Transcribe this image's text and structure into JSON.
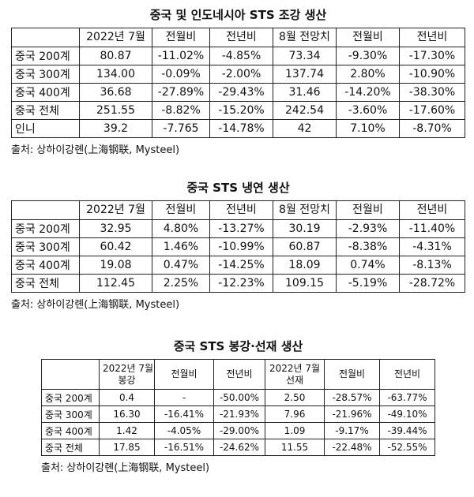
{
  "tables": [
    {
      "title": "중국 및 인도네시아 STS 조강 생산",
      "header": [
        [
          "2022년 7월"
        ],
        [
          "전월비"
        ],
        [
          "전년비"
        ],
        [
          "8월 전망치"
        ],
        [
          "전월비"
        ],
        [
          "전년비"
        ]
      ],
      "rows": [
        [
          "중국 200계",
          "80.87",
          "-11.02%",
          "-4.85%",
          "73.34",
          "-9.30%",
          "-17.30%"
        ],
        [
          "중국 300계",
          "134.00",
          "-0.09%",
          "-2.00%",
          "137.74",
          "2.80%",
          "-10.90%"
        ],
        [
          "중국 400계",
          "36.68",
          "-27.89%",
          "-29.43%",
          "31.46",
          "-14.20%",
          "-38.30%"
        ],
        [
          "중국 전체",
          "251.55",
          "-8.82%",
          "-15.20%",
          "242.54",
          "-3.60%",
          "-17.60%"
        ],
        [
          "인니",
          "39.2",
          "-7.765",
          "-14.78%",
          "42",
          "7.10%",
          "-8.70%"
        ]
      ],
      "source": "출처: 상하이강롄(上海钢联, Mysteel)"
    },
    {
      "title": "중국 STS 냉연 생산",
      "header": [
        [
          "2022년 7월"
        ],
        [
          "전월비"
        ],
        [
          "전년비"
        ],
        [
          "8월 전망치"
        ],
        [
          "전월비"
        ],
        [
          "전년비"
        ]
      ],
      "rows": [
        [
          "중국 200계",
          "32.95",
          "4.80%",
          "-13.27%",
          "30.19",
          "-2.93%",
          "-11.40%"
        ],
        [
          "중국 300계",
          "60.42",
          "1.46%",
          "-10.99%",
          "60.87",
          "-8.38%",
          "-4.31%"
        ],
        [
          "중국 400계",
          "19.08",
          "0.47%",
          "-14.25%",
          "18.09",
          "0.74%",
          "-8.13%"
        ],
        [
          "중국 전체",
          "112.45",
          "2.25%",
          "-12.23%",
          "109.15",
          "-5.19%",
          "-28.72%"
        ]
      ],
      "source": "출처: 상하이강롄(上海钢联, Mysteel)"
    },
    {
      "title": "중국 STS 봉강·선재 생산",
      "header": [
        [
          "2022년 7월",
          "봉강"
        ],
        [
          "전월비"
        ],
        [
          "전년비"
        ],
        [
          "2022년 7월",
          "선재"
        ],
        [
          "전월비"
        ],
        [
          "전년비"
        ]
      ],
      "rows": [
        [
          "중국 200계",
          "0.4",
          "-",
          "-50.00%",
          "2.50",
          "-28.57%",
          "-63.77%"
        ],
        [
          "중국 300계",
          "16.30",
          "-16.41%",
          "-21.93%",
          "7.96",
          "-21.96%",
          "-49.10%"
        ],
        [
          "중국 400계",
          "1.42",
          "-4.05%",
          "-29.00%",
          "1.09",
          "-9.17%",
          "-39.44%"
        ],
        [
          "중국 전체",
          "17.85",
          "-16.51%",
          "-24.62%",
          "11.55",
          "-22.48%",
          "-52.55%"
        ]
      ],
      "source": "출처: 상하이강롄(上海钢联, Mysteel)"
    }
  ]
}
